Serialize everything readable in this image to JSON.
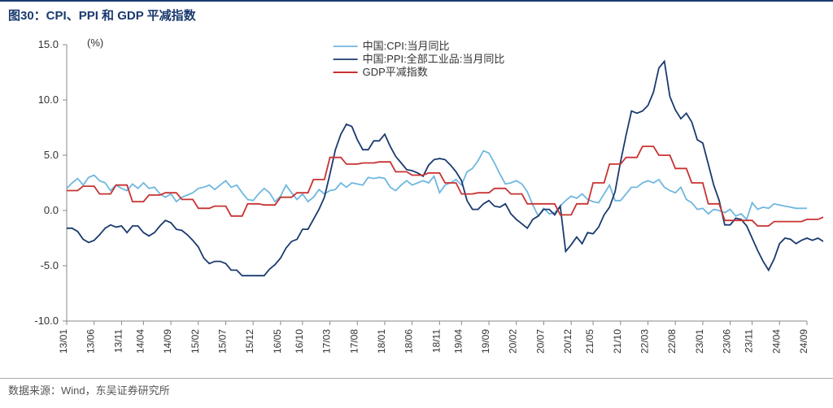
{
  "title": "图30：CPI、PPI 和 GDP 平减指数",
  "source": "数据来源：Wind，东吴证券研究所",
  "chart": {
    "type": "line",
    "unit_label": "(%)",
    "ylim": [
      -10,
      15
    ],
    "ytick_step": 5,
    "yticks": [
      -10.0,
      -5.0,
      0.0,
      5.0,
      10.0,
      15.0
    ],
    "ytick_labels": [
      "-10.0",
      "-5.0",
      "0.0",
      "5.0",
      "10.0",
      "15.0"
    ],
    "x_labels": [
      "13/01",
      "13/06",
      "13/11",
      "14/04",
      "14/09",
      "15/02",
      "15/07",
      "15/12",
      "16/05",
      "16/10",
      "17/03",
      "17/08",
      "18/01",
      "18/06",
      "18/11",
      "19/04",
      "19/09",
      "20/02",
      "20/07",
      "20/12",
      "21/05",
      "21/10",
      "22/03",
      "22/08",
      "23/01",
      "23/06",
      "23/11",
      "24/04",
      "24/09"
    ],
    "background_color": "#ffffff",
    "axis_color": "#888888",
    "series": [
      {
        "name": "中国:CPI:当月同比",
        "color": "#6fb7e0",
        "width": 1.8,
        "values": [
          2.0,
          2.5,
          2.9,
          2.3,
          3.0,
          3.2,
          2.7,
          2.5,
          1.8,
          2.3,
          2.0,
          1.8,
          2.4,
          2.0,
          2.5,
          2.0,
          2.1,
          1.5,
          1.2,
          1.5,
          0.8,
          1.2,
          1.4,
          1.6,
          2.0,
          2.1,
          2.3,
          1.9,
          2.3,
          2.7,
          2.1,
          2.3,
          1.6,
          1.0,
          0.9,
          1.5,
          2.0,
          1.6,
          0.8,
          1.3,
          2.3,
          1.6,
          1.0,
          1.5,
          0.8,
          1.2,
          1.9,
          1.5,
          1.8,
          1.9,
          2.5,
          2.1,
          2.5,
          2.4,
          2.3,
          3.0,
          2.9,
          3.0,
          2.9,
          2.1,
          1.8,
          2.3,
          2.7,
          2.3,
          2.5,
          2.7,
          2.5,
          3.1,
          1.6,
          2.3,
          2.5,
          2.8,
          2.3,
          3.5,
          3.8,
          4.5,
          5.4,
          5.2,
          4.3,
          3.3,
          2.4,
          2.5,
          2.7,
          2.4,
          1.7,
          0.5,
          -0.5,
          0.2,
          -0.3,
          -0.2,
          0.4,
          0.9,
          1.3,
          1.1,
          1.5,
          1.0,
          0.8,
          0.7,
          1.5,
          2.3,
          0.9,
          0.9,
          1.5,
          2.1,
          2.1,
          2.5,
          2.7,
          2.5,
          2.8,
          2.1,
          1.8,
          1.6,
          2.1,
          1.0,
          0.7,
          0.1,
          0.2,
          -0.3,
          0.1,
          0.0,
          -0.2,
          0.1,
          -0.5,
          -0.3,
          -0.8,
          0.7,
          0.1,
          0.3,
          0.2,
          0.6,
          0.5,
          0.4,
          0.3,
          0.2,
          0.2,
          0.2
        ]
      },
      {
        "name": "中国:PPI:全部工业品:当月同比",
        "color": "#1a3a6e",
        "width": 1.8,
        "values": [
          -1.6,
          -1.6,
          -1.9,
          -2.6,
          -2.9,
          -2.7,
          -2.2,
          -1.6,
          -1.3,
          -1.5,
          -1.4,
          -2.0,
          -1.4,
          -1.4,
          -2.0,
          -2.3,
          -2.0,
          -1.4,
          -0.9,
          -1.1,
          -1.7,
          -1.8,
          -2.2,
          -2.7,
          -3.3,
          -4.3,
          -4.8,
          -4.6,
          -4.6,
          -4.8,
          -5.4,
          -5.4,
          -5.9,
          -5.9,
          -5.9,
          -5.9,
          -5.9,
          -5.3,
          -4.9,
          -4.3,
          -3.4,
          -2.8,
          -2.6,
          -1.7,
          -1.7,
          -0.8,
          0.1,
          1.2,
          3.3,
          5.5,
          6.9,
          7.8,
          7.6,
          6.4,
          5.5,
          5.5,
          6.3,
          6.3,
          6.9,
          5.8,
          4.9,
          4.3,
          3.7,
          3.6,
          3.4,
          3.1,
          4.1,
          4.6,
          4.7,
          4.6,
          4.1,
          3.5,
          2.7,
          0.9,
          0.1,
          0.1,
          0.6,
          0.9,
          0.4,
          0.3,
          0.6,
          -0.3,
          -0.8,
          -1.2,
          -1.6,
          -0.8,
          -0.5,
          0.1,
          0.1,
          -0.4,
          0.4,
          -3.7,
          -3.1,
          -2.4,
          -3.0,
          -2.0,
          -2.1,
          -1.5,
          -0.4,
          0.3,
          1.7,
          4.4,
          6.8,
          9.0,
          8.8,
          9.0,
          9.5,
          10.7,
          12.9,
          13.5,
          10.3,
          9.1,
          8.3,
          8.8,
          8.0,
          6.4,
          6.1,
          4.2,
          2.3,
          0.9,
          -1.3,
          -1.3,
          -0.7,
          -0.8,
          -1.4,
          -2.5,
          -3.6,
          -4.6,
          -5.4,
          -4.4,
          -3.0,
          -2.5,
          -2.6,
          -3.0,
          -2.7,
          -2.5,
          -2.7,
          -2.5,
          -2.8,
          -1.8,
          -0.8,
          -1.8,
          -2.5,
          -2.8,
          -2.5
        ]
      },
      {
        "name": "GDP平减指数",
        "color": "#c83232",
        "width": 2.0,
        "values": [
          1.8,
          1.8,
          1.8,
          2.2,
          2.2,
          2.2,
          1.5,
          1.5,
          1.5,
          2.3,
          2.3,
          2.3,
          0.8,
          0.8,
          0.8,
          1.4,
          1.4,
          1.4,
          1.6,
          1.6,
          1.6,
          1.0,
          1.0,
          1.0,
          0.2,
          0.2,
          0.2,
          0.4,
          0.4,
          0.4,
          -0.5,
          -0.5,
          -0.5,
          0.6,
          0.6,
          0.6,
          0.5,
          0.5,
          0.5,
          1.2,
          1.2,
          1.2,
          1.6,
          1.6,
          1.6,
          2.8,
          2.8,
          2.8,
          4.8,
          4.8,
          4.8,
          4.2,
          4.2,
          4.2,
          4.3,
          4.3,
          4.3,
          4.4,
          4.4,
          4.4,
          3.5,
          3.5,
          3.5,
          3.2,
          3.2,
          3.2,
          3.4,
          3.4,
          3.4,
          2.5,
          2.5,
          2.5,
          1.5,
          1.5,
          1.5,
          1.6,
          1.6,
          1.6,
          2.0,
          2.0,
          2.0,
          1.5,
          1.5,
          1.5,
          0.6,
          0.6,
          0.6,
          0.6,
          0.6,
          0.6,
          -0.4,
          -0.4,
          -0.4,
          0.6,
          0.6,
          0.6,
          2.5,
          2.5,
          2.5,
          4.2,
          4.2,
          4.2,
          4.8,
          4.8,
          4.8,
          5.8,
          5.8,
          5.8,
          5.0,
          5.0,
          5.0,
          3.8,
          3.8,
          3.8,
          2.5,
          2.5,
          2.5,
          0.6,
          0.6,
          0.6,
          -0.9,
          -0.9,
          -0.9,
          -0.9,
          -0.9,
          -0.9,
          -1.4,
          -1.4,
          -1.4,
          -1.0,
          -1.0,
          -1.0,
          -1.0,
          -1.0,
          -1.0,
          -0.8,
          -0.8,
          -0.8,
          -0.6,
          -0.6,
          -0.6,
          -0.5,
          -0.5,
          -0.5,
          -0.5
        ]
      }
    ]
  }
}
